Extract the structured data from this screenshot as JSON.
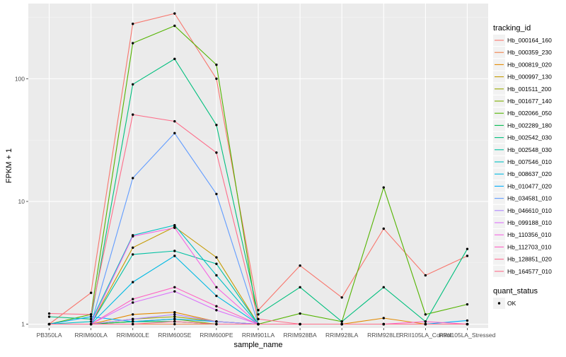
{
  "chart_data": {
    "type": "line",
    "xlabel": "sample_name",
    "ylabel": "FPKM + 1",
    "y_scale": "log10",
    "ylim": [
      0.93,
      410
    ],
    "y_ticks": [
      {
        "value": 1,
        "label": "1"
      },
      {
        "value": 10,
        "label": "10"
      },
      {
        "value": 100,
        "label": "100"
      }
    ],
    "grid": true,
    "legend_position": "right",
    "categories": [
      "PB350LA",
      "RRIM600LA",
      "RRIM600LE",
      "RRIM600SE",
      "RRIM600PE",
      "RRIM901LA",
      "RRIM928BA",
      "RRIM928LA",
      "RRIM928LE",
      "RRII105LA_Control",
      "RRII105LA_Stressed"
    ],
    "legend_title": "tracking_id",
    "point_legend": {
      "title": "quant_status",
      "label": "OK"
    },
    "series": [
      {
        "name": "Hb_000164_160",
        "color": "#F8766D",
        "values": [
          1.0,
          1.8,
          280,
          340,
          100,
          1.3,
          3.0,
          1.65,
          6.0,
          2.5,
          3.6
        ]
      },
      {
        "name": "Hb_000359_230",
        "color": "#EF7F49",
        "values": [
          1.0,
          1.0,
          1.0,
          1.0,
          1.0,
          1.0,
          1.0,
          1.0,
          1.0,
          1.0,
          1.0
        ]
      },
      {
        "name": "Hb_000819_020",
        "color": "#E38900",
        "values": [
          1.0,
          1.0,
          1.2,
          1.25,
          1.05,
          1.0,
          1.0,
          1.0,
          1.12,
          1.0,
          1.0
        ]
      },
      {
        "name": "Hb_000997_130",
        "color": "#C49A00",
        "values": [
          1.0,
          1.0,
          4.2,
          6.2,
          3.5,
          1.0,
          1.0,
          1.0,
          1.0,
          1.0,
          1.0
        ]
      },
      {
        "name": "Hb_001511_200",
        "color": "#99A800",
        "values": [
          1.0,
          1.0,
          1.1,
          1.15,
          1.05,
          1.0,
          1.0,
          1.0,
          1.0,
          1.0,
          1.0
        ]
      },
      {
        "name": "Hb_001677_140",
        "color": "#7CAE00",
        "values": [
          1.0,
          1.0,
          1.05,
          1.1,
          1.0,
          1.0,
          1.0,
          1.0,
          1.0,
          1.0,
          1.0
        ]
      },
      {
        "name": "Hb_002066_050",
        "color": "#53B400",
        "values": [
          1.0,
          1.2,
          195,
          270,
          130,
          1.0,
          1.22,
          1.05,
          13.0,
          1.2,
          1.45
        ]
      },
      {
        "name": "Hb_002289_180",
        "color": "#00BB4E",
        "values": [
          1.0,
          1.0,
          1.05,
          1.05,
          1.0,
          1.0,
          1.0,
          1.0,
          1.0,
          1.0,
          1.0
        ]
      },
      {
        "name": "Hb_002542_030",
        "color": "#00BF7D",
        "values": [
          1.15,
          1.1,
          90,
          145,
          42,
          1.2,
          2.0,
          1.05,
          2.0,
          1.05,
          4.1
        ]
      },
      {
        "name": "Hb_002548_030",
        "color": "#00C1A3",
        "values": [
          1.0,
          1.0,
          3.7,
          3.95,
          3.1,
          1.0,
          1.0,
          1.0,
          1.0,
          1.0,
          1.0
        ]
      },
      {
        "name": "Hb_007546_010",
        "color": "#00BFC4",
        "values": [
          1.0,
          1.05,
          5.3,
          6.4,
          2.5,
          1.0,
          1.0,
          1.0,
          1.0,
          1.0,
          1.0
        ]
      },
      {
        "name": "Hb_008637_020",
        "color": "#00B9E3",
        "values": [
          1.0,
          1.0,
          2.2,
          3.6,
          1.7,
          1.0,
          1.0,
          1.0,
          1.0,
          1.0,
          1.0
        ]
      },
      {
        "name": "Hb_010477_020",
        "color": "#00ADFA",
        "values": [
          1.0,
          1.15,
          1.05,
          1.1,
          1.05,
          1.0,
          1.0,
          1.0,
          1.0,
          1.0,
          1.07
        ]
      },
      {
        "name": "Hb_034581_010",
        "color": "#619CFF",
        "values": [
          1.0,
          1.0,
          15.5,
          36,
          11.5,
          1.0,
          1.0,
          1.0,
          1.0,
          1.0,
          1.0
        ]
      },
      {
        "name": "Hb_046610_010",
        "color": "#AE87FF",
        "values": [
          1.0,
          1.0,
          1.1,
          1.2,
          1.05,
          1.0,
          1.0,
          1.0,
          1.0,
          1.0,
          1.0
        ]
      },
      {
        "name": "Hb_099188_010",
        "color": "#DB72FB",
        "values": [
          1.0,
          1.0,
          1.5,
          1.85,
          1.3,
          1.0,
          1.0,
          1.0,
          1.0,
          1.0,
          1.0
        ]
      },
      {
        "name": "Hb_110356_010",
        "color": "#F564E3",
        "values": [
          1.0,
          1.0,
          5.2,
          6.1,
          2.0,
          1.0,
          1.0,
          1.0,
          1.0,
          1.0,
          1.0
        ]
      },
      {
        "name": "Hb_112703_010",
        "color": "#FF61C3",
        "values": [
          1.0,
          1.0,
          1.6,
          2.0,
          1.4,
          1.0,
          1.0,
          1.0,
          1.0,
          1.05,
          1.0
        ]
      },
      {
        "name": "Hb_128851_020",
        "color": "#FF6C91",
        "values": [
          1.0,
          1.0,
          1.0,
          1.05,
          1.0,
          1.0,
          1.0,
          1.0,
          1.0,
          1.0,
          1.0
        ]
      },
      {
        "name": "Hb_164577_010",
        "color": "#FE6E8A",
        "values": [
          1.22,
          1.2,
          51,
          45,
          25,
          1.1,
          1.0,
          1.0,
          1.0,
          1.0,
          1.0
        ]
      }
    ]
  }
}
